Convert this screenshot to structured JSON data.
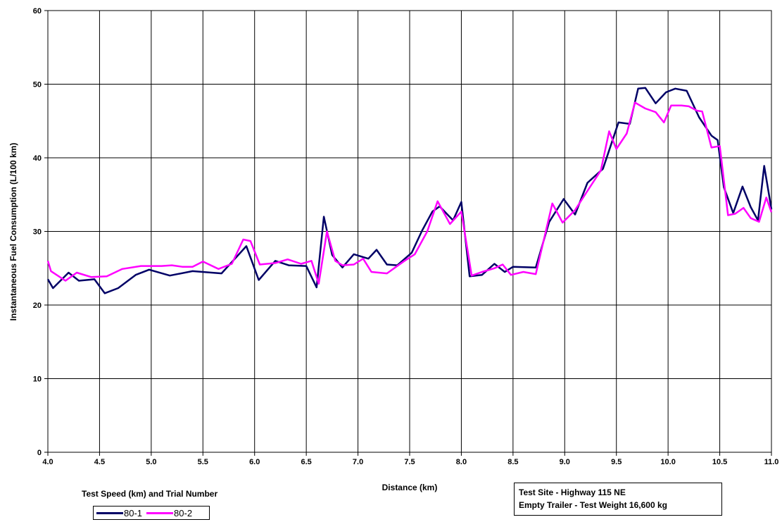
{
  "chart_data": {
    "type": "line",
    "title": "",
    "xlabel": "Distance (km)",
    "ylabel": "Instantaneous Fuel Consumption (L/100 km)",
    "xlim": [
      4.0,
      11.0
    ],
    "ylim": [
      0,
      60
    ],
    "x_ticks": [
      "4.0",
      "4.5",
      "5.0",
      "5.5",
      "6.0",
      "6.5",
      "7.0",
      "7.5",
      "8.0",
      "8.5",
      "9.0",
      "9.5",
      "10.0",
      "10.5",
      "11.0"
    ],
    "y_ticks": [
      "0",
      "10",
      "20",
      "30",
      "40",
      "50",
      "60"
    ],
    "grid": true,
    "legend_position": "bottom-left",
    "legend_title": "Test Speed (km) and Trial Number",
    "series": [
      {
        "name": "80-1",
        "color": "#000066",
        "x": [
          4.0,
          4.05,
          4.2,
          4.3,
          4.45,
          4.55,
          4.68,
          4.85,
          4.98,
          5.18,
          5.4,
          5.68,
          5.92,
          6.04,
          6.2,
          6.33,
          6.5,
          6.6,
          6.67,
          6.75,
          6.85,
          6.96,
          7.1,
          7.18,
          7.28,
          7.38,
          7.52,
          7.62,
          7.72,
          7.79,
          7.92,
          8.0,
          8.08,
          8.2,
          8.32,
          8.42,
          8.5,
          8.72,
          8.85,
          8.99,
          9.1,
          9.22,
          9.37,
          9.52,
          9.63,
          9.71,
          9.78,
          9.88,
          9.98,
          10.07,
          10.18,
          10.3,
          10.42,
          10.48,
          10.54,
          10.63,
          10.72,
          10.8,
          10.87,
          10.93,
          11.0
        ],
        "values": [
          23.5,
          22.3,
          24.4,
          23.3,
          23.5,
          21.6,
          22.3,
          24.1,
          24.8,
          24.0,
          24.6,
          24.3,
          28.0,
          23.4,
          26.0,
          25.4,
          25.3,
          22.4,
          32.0,
          26.8,
          25.1,
          26.9,
          26.3,
          27.5,
          25.5,
          25.4,
          27.1,
          30.1,
          32.7,
          33.4,
          31.5,
          34.0,
          23.9,
          24.1,
          25.6,
          24.5,
          25.2,
          25.1,
          31.3,
          34.4,
          32.3,
          36.6,
          38.5,
          44.8,
          44.6,
          49.4,
          49.5,
          47.4,
          48.9,
          49.4,
          49.1,
          45.5,
          43.0,
          42.4,
          36.0,
          32.5,
          36.1,
          33.3,
          31.5,
          38.9,
          33.0
        ]
      },
      {
        "name": "80-2",
        "color": "#ff00ff",
        "x": [
          4.0,
          4.03,
          4.17,
          4.28,
          4.42,
          4.57,
          4.72,
          4.9,
          5.1,
          5.2,
          5.3,
          5.4,
          5.5,
          5.65,
          5.78,
          5.89,
          5.96,
          6.05,
          6.2,
          6.32,
          6.45,
          6.55,
          6.62,
          6.7,
          6.78,
          6.85,
          6.96,
          7.05,
          7.13,
          7.28,
          7.45,
          7.55,
          7.67,
          7.77,
          7.89,
          8.0,
          8.1,
          8.2,
          8.32,
          8.4,
          8.48,
          8.6,
          8.72,
          8.88,
          8.98,
          9.1,
          9.22,
          9.35,
          9.43,
          9.5,
          9.6,
          9.68,
          9.78,
          9.88,
          9.96,
          10.03,
          10.13,
          10.2,
          10.28,
          10.33,
          10.42,
          10.5,
          10.58,
          10.65,
          10.73,
          10.8,
          10.88,
          10.95,
          11.0
        ],
        "values": [
          26.0,
          24.6,
          23.3,
          24.4,
          23.8,
          23.9,
          24.9,
          25.3,
          25.3,
          25.4,
          25.2,
          25.2,
          25.9,
          24.9,
          25.6,
          28.9,
          28.7,
          25.5,
          25.7,
          26.2,
          25.6,
          26.0,
          22.9,
          30.0,
          26.0,
          25.4,
          25.5,
          26.3,
          24.5,
          24.3,
          26.0,
          26.9,
          30.0,
          34.1,
          31.0,
          32.7,
          24.0,
          24.5,
          25.0,
          25.5,
          24.1,
          24.5,
          24.2,
          33.8,
          31.2,
          32.9,
          35.5,
          38.3,
          43.6,
          41.2,
          43.3,
          47.5,
          46.7,
          46.2,
          44.8,
          47.1,
          47.1,
          47.0,
          46.4,
          46.3,
          41.4,
          41.6,
          32.2,
          32.4,
          33.2,
          31.8,
          31.3,
          34.6,
          32.6
        ]
      }
    ]
  },
  "note": {
    "line1": "Test Site - Highway 115 NE",
    "line2": "Empty Trailer - Test Weight 16,600 kg"
  }
}
